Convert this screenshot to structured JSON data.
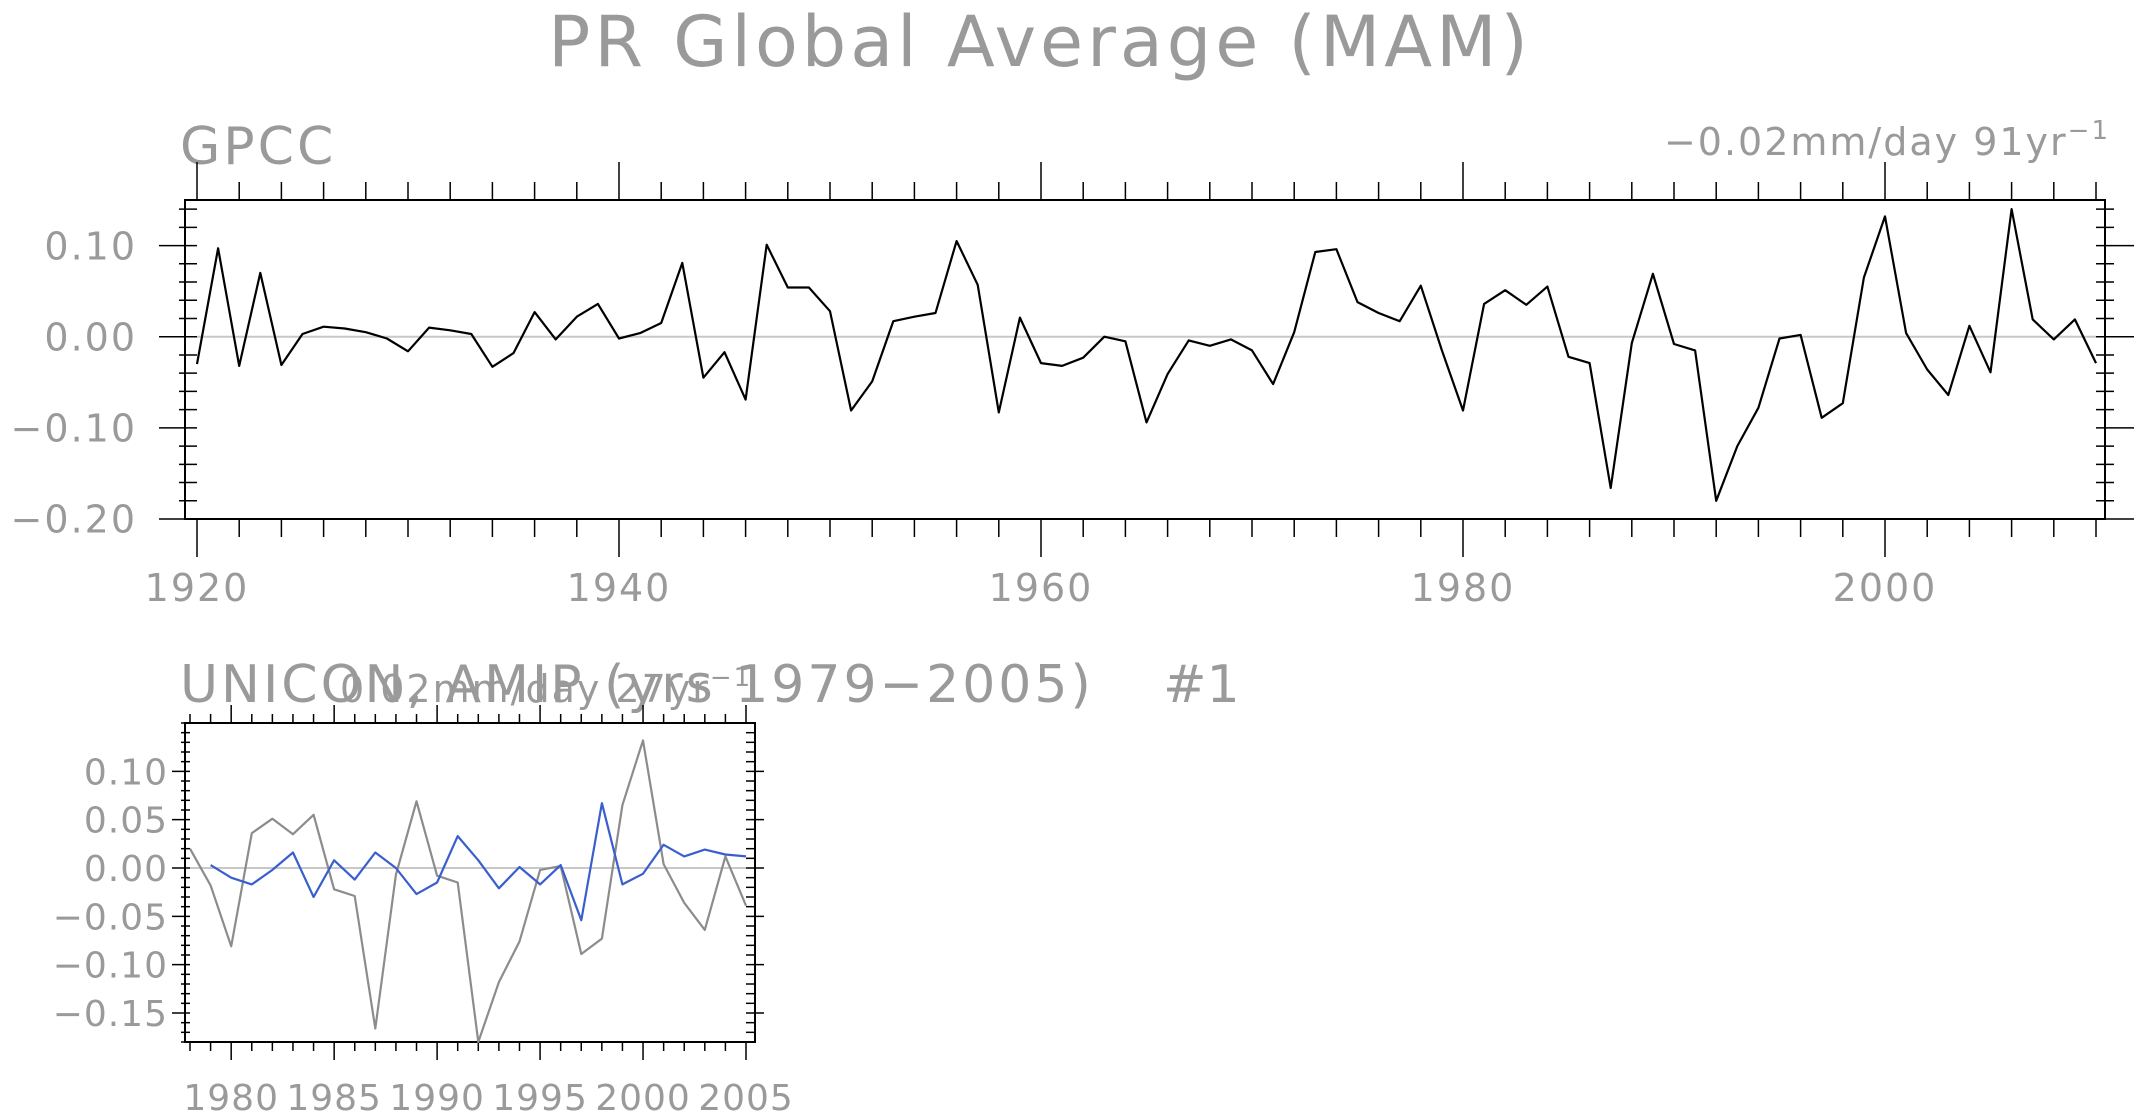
{
  "figure": {
    "title": "PR Global Average (MAM)"
  },
  "colors": {
    "obs": "#000000",
    "obs_gray": "#8c8c8c",
    "model": "#3a5fcd",
    "zero": "#c8c8c8",
    "text": "#9a9a9a"
  },
  "chart_data": [
    {
      "type": "line",
      "title": "GPCC",
      "trend_label": "−0.02mm/day 91yr",
      "trend_label_sup": "−1",
      "xlim": [
        1920,
        2010
      ],
      "ylim": [
        -0.2,
        0.15
      ],
      "xticks": [
        1920,
        1940,
        1960,
        1980,
        2000
      ],
      "xtick_labels": [
        "1920",
        "1940",
        "1960",
        "1980",
        "2000"
      ],
      "yticks": [
        -0.2,
        -0.1,
        0.0,
        0.1
      ],
      "ytick_labels": [
        "−0.20",
        "−0.10",
        "0.00",
        "0.10"
      ],
      "series": [
        {
          "x": [
            1920,
            1921,
            1922,
            1923,
            1924,
            1925,
            1926,
            1927,
            1928,
            1929,
            1930,
            1931,
            1932,
            1933,
            1934,
            1935,
            1936,
            1937,
            1938,
            1939,
            1940,
            1941,
            1942,
            1943,
            1944,
            1945,
            1946,
            1947,
            1948,
            1949,
            1950,
            1951,
            1952,
            1953,
            1954,
            1955,
            1956,
            1957,
            1958,
            1959,
            1960,
            1961,
            1962,
            1963,
            1964,
            1965,
            1966,
            1967,
            1968,
            1969,
            1970,
            1971,
            1972,
            1973,
            1974,
            1975,
            1976,
            1977,
            1978,
            1979,
            1980,
            1981,
            1982,
            1983,
            1984,
            1985,
            1986,
            1987,
            1988,
            1989,
            1990,
            1991,
            1992,
            1993,
            1994,
            1995,
            1996,
            1997,
            1998,
            1999,
            2000,
            2001,
            2002,
            2003,
            2004,
            2005,
            2006,
            2007,
            2008,
            2009,
            2010
          ],
          "y": [
            -0.03,
            0.097,
            -0.032,
            0.07,
            -0.031,
            0.003,
            0.011,
            0.009,
            0.005,
            -0.002,
            -0.016,
            0.01,
            0.007,
            0.003,
            -0.033,
            -0.018,
            0.027,
            -0.003,
            0.022,
            0.036,
            -0.002,
            0.004,
            0.015,
            0.081,
            -0.045,
            -0.017,
            -0.069,
            0.101,
            0.054,
            0.054,
            0.028,
            -0.081,
            -0.049,
            0.017,
            0.022,
            0.026,
            0.105,
            0.057,
            -0.083,
            0.021,
            -0.029,
            -0.032,
            -0.023,
            0.0,
            -0.005,
            -0.094,
            -0.041,
            -0.004,
            -0.01,
            -0.003,
            -0.015,
            -0.052,
            0.005,
            0.093,
            0.096,
            0.038,
            0.026,
            0.017,
            0.056,
            -0.015,
            -0.081,
            0.036,
            0.051,
            0.035,
            0.055,
            -0.022,
            -0.029,
            -0.166,
            -0.007,
            0.069,
            -0.008,
            -0.015,
            -0.18,
            -0.12,
            -0.078,
            -0.002,
            0.002,
            -0.089,
            -0.073,
            0.065,
            0.132,
            0.004,
            -0.036,
            -0.064,
            0.012,
            -0.039,
            0.14,
            0.019,
            -0.003,
            0.019,
            -0.029
          ]
        }
      ]
    },
    {
      "type": "line",
      "title": "UNICON, AMIP (yrs 1979−2005)",
      "ensemble_label": "#1",
      "trend_label": "0.02mm/day 27yr",
      "trend_label_sup": "−1",
      "xlim": [
        1978,
        2005
      ],
      "ylim": [
        -0.18,
        0.15
      ],
      "xticks": [
        1980,
        1985,
        1990,
        1995,
        2000,
        2005
      ],
      "xtick_labels": [
        "1980",
        "1985",
        "1990",
        "1995",
        "2000",
        "2005"
      ],
      "yticks": [
        -0.15,
        -0.1,
        -0.05,
        0.0,
        0.05,
        0.1
      ],
      "ytick_labels": [
        "−0.15",
        "−0.10",
        "−0.05",
        "0.00",
        "0.05",
        "0.10"
      ],
      "series": [
        {
          "x": [
            1978,
            1979,
            1980,
            1981,
            1982,
            1983,
            1984,
            1985,
            1986,
            1987,
            1988,
            1989,
            1990,
            1991,
            1992,
            1993,
            1994,
            1995,
            1996,
            1997,
            1998,
            1999,
            2000,
            2001,
            2002,
            2003,
            2004,
            2005
          ],
          "y": [
            0.02,
            -0.018,
            -0.081,
            0.036,
            0.051,
            0.035,
            0.055,
            -0.022,
            -0.029,
            -0.166,
            -0.007,
            0.069,
            -0.008,
            -0.015,
            -0.18,
            -0.118,
            -0.076,
            -0.002,
            0.002,
            -0.089,
            -0.073,
            0.065,
            0.132,
            0.004,
            -0.036,
            -0.064,
            0.012,
            -0.039
          ]
        },
        {
          "x": [
            1979,
            1980,
            1981,
            1982,
            1983,
            1984,
            1985,
            1986,
            1987,
            1988,
            1989,
            1990,
            1991,
            1992,
            1993,
            1994,
            1995,
            1996,
            1997,
            1998,
            1999,
            2000,
            2001,
            2002,
            2003,
            2004,
            2005
          ],
          "y": [
            0.003,
            -0.01,
            -0.017,
            -0.002,
            0.016,
            -0.03,
            0.008,
            -0.012,
            0.016,
            0.0,
            -0.027,
            -0.015,
            0.033,
            0.008,
            -0.021,
            0.001,
            -0.017,
            0.003,
            -0.054,
            0.067,
            -0.017,
            -0.006,
            0.024,
            0.012,
            0.019,
            0.014,
            0.012
          ]
        }
      ]
    }
  ]
}
